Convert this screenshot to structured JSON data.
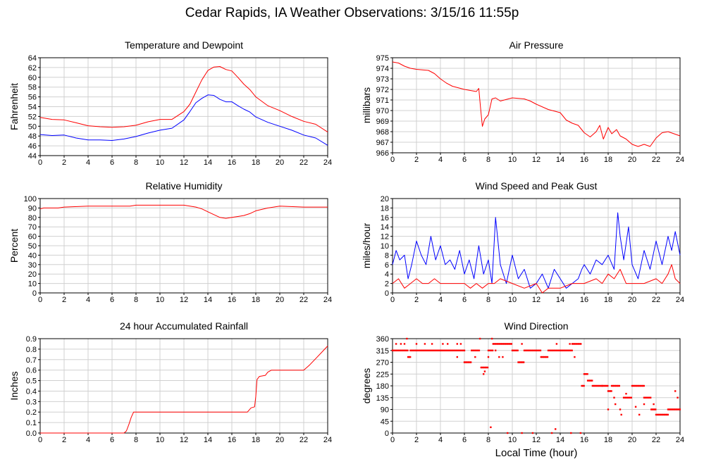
{
  "page": {
    "title": "Cedar Rapids, IA Weather Observations: 3/15/16 11:55p",
    "xlabel": "Local Time (hour)"
  },
  "chart_data": [
    {
      "id": "temp",
      "type": "line",
      "title": "Temperature and Dewpoint",
      "ylabel": "Fahrenheit",
      "xlim": [
        0,
        24
      ],
      "ylim": [
        44,
        64
      ],
      "xticks": [
        0,
        2,
        4,
        6,
        8,
        10,
        12,
        14,
        16,
        18,
        20,
        22,
        24
      ],
      "yticks": [
        44,
        46,
        48,
        50,
        52,
        54,
        56,
        58,
        60,
        62,
        64
      ],
      "grid": true,
      "series": [
        {
          "color": "#ff0000",
          "x": [
            0,
            1,
            2,
            3,
            4,
            5,
            6,
            7,
            8,
            9,
            10,
            11,
            12,
            12.5,
            13,
            13.5,
            14,
            14.5,
            15,
            15.5,
            16,
            16.5,
            17,
            17.5,
            18,
            19,
            20,
            21,
            22,
            23,
            24
          ],
          "y": [
            51.8,
            51.4,
            51.3,
            50.7,
            50.1,
            49.9,
            49.8,
            49.9,
            50.2,
            50.9,
            51.4,
            51.4,
            53.0,
            54.5,
            57.0,
            59.5,
            61.4,
            62.1,
            62.2,
            61.6,
            61.3,
            60.0,
            58.6,
            57.5,
            56.0,
            54.2,
            53.2,
            52.0,
            51.0,
            50.4,
            48.8
          ]
        },
        {
          "color": "#0000ff",
          "x": [
            0,
            1,
            2,
            3,
            4,
            5,
            6,
            7,
            8,
            9,
            10,
            11,
            12,
            12.5,
            13,
            13.5,
            14,
            14.5,
            15,
            15.5,
            16,
            16.5,
            17,
            17.5,
            18,
            19,
            20,
            21,
            22,
            23,
            24
          ],
          "y": [
            48.3,
            48.1,
            48.2,
            47.6,
            47.2,
            47.2,
            47.1,
            47.4,
            47.9,
            48.6,
            49.2,
            49.6,
            51.3,
            53.0,
            54.8,
            55.7,
            56.4,
            56.3,
            55.5,
            55.0,
            55.0,
            54.2,
            53.5,
            52.9,
            51.9,
            50.8,
            50.0,
            49.2,
            48.2,
            47.6,
            46.1
          ]
        }
      ]
    },
    {
      "id": "pres",
      "type": "line",
      "title": "Air Pressure",
      "ylabel": "millibars",
      "xlim": [
        0,
        24
      ],
      "ylim": [
        966,
        975
      ],
      "xticks": [
        0,
        2,
        4,
        6,
        8,
        10,
        12,
        14,
        16,
        18,
        20,
        22,
        24
      ],
      "yticks": [
        966,
        967,
        968,
        969,
        970,
        971,
        972,
        973,
        974,
        975
      ],
      "grid": true,
      "series": [
        {
          "color": "#ff0000",
          "x": [
            0,
            0.5,
            1,
            1.5,
            2,
            3,
            3.5,
            4,
            4.5,
            5,
            6,
            7,
            7.2,
            7.35,
            7.5,
            7.7,
            8,
            8.3,
            8.6,
            9,
            10,
            11,
            11.5,
            12,
            13,
            14,
            14.5,
            15,
            15.5,
            16,
            16.5,
            17,
            17.3,
            17.6,
            18,
            18.3,
            18.7,
            19,
            19.5,
            20,
            20.5,
            21,
            21.5,
            22,
            22.5,
            23,
            23.5,
            24
          ],
          "y": [
            974.6,
            974.5,
            974.2,
            974.0,
            973.9,
            973.8,
            973.5,
            973.0,
            972.6,
            972.3,
            972.0,
            971.8,
            972.1,
            970.2,
            968.5,
            969.2,
            969.6,
            971.1,
            971.2,
            970.9,
            971.2,
            971.1,
            970.9,
            970.6,
            970.1,
            969.8,
            969.1,
            968.8,
            968.6,
            967.9,
            967.5,
            968.0,
            968.6,
            967.3,
            968.4,
            967.8,
            968.2,
            967.6,
            967.3,
            966.8,
            966.6,
            966.8,
            966.6,
            967.4,
            967.9,
            968.0,
            967.8,
            967.6
          ]
        }
      ]
    },
    {
      "id": "rh",
      "type": "line",
      "title": "Relative Humidity",
      "ylabel": "Percent",
      "xlim": [
        0,
        24
      ],
      "ylim": [
        0,
        100
      ],
      "xticks": [
        0,
        2,
        4,
        6,
        8,
        10,
        12,
        14,
        16,
        18,
        20,
        22,
        24
      ],
      "yticks": [
        0,
        10,
        20,
        30,
        40,
        50,
        60,
        70,
        80,
        90,
        100
      ],
      "grid": true,
      "series": [
        {
          "color": "#ff0000",
          "x": [
            0,
            0.3,
            1.5,
            2,
            4,
            6,
            7.5,
            8,
            10,
            12,
            12.5,
            13,
            13.5,
            14,
            14.5,
            15,
            15.5,
            16,
            16.5,
            17,
            17.5,
            18,
            19,
            20,
            22,
            24
          ],
          "y": [
            89,
            90,
            90,
            91,
            92,
            92,
            92,
            93,
            93,
            93,
            92,
            91,
            89,
            86,
            83,
            80,
            79,
            80,
            81,
            82,
            84,
            87,
            90,
            92,
            91,
            91
          ]
        }
      ]
    },
    {
      "id": "wind",
      "type": "line",
      "title": "Wind Speed and Peak Gust",
      "ylabel": "miles/hour",
      "xlim": [
        0,
        24
      ],
      "ylim": [
        0,
        20
      ],
      "xticks": [
        0,
        2,
        4,
        6,
        8,
        10,
        12,
        14,
        16,
        18,
        20,
        22,
        24
      ],
      "yticks": [
        0,
        2,
        4,
        6,
        8,
        10,
        12,
        14,
        16,
        18,
        20
      ],
      "grid": true,
      "series": [
        {
          "color": "#0000ff",
          "x": [
            0,
            0.3,
            0.6,
            1,
            1.3,
            1.6,
            2,
            2.4,
            2.8,
            3.2,
            3.6,
            4,
            4.4,
            4.8,
            5.2,
            5.6,
            6,
            6.4,
            6.8,
            7.2,
            7.6,
            8,
            8.3,
            8.6,
            9,
            9.5,
            10,
            10.5,
            11,
            11.5,
            12,
            12.5,
            13,
            13.5,
            14,
            14.5,
            15,
            15.5,
            15.8,
            16,
            16.5,
            17,
            17.5,
            18,
            18.5,
            18.8,
            19,
            19.3,
            19.7,
            20,
            20.5,
            21,
            21.5,
            22,
            22.5,
            23,
            23.3,
            23.6,
            24
          ],
          "y": [
            6,
            9,
            7,
            8,
            3,
            6,
            11,
            8,
            6,
            12,
            7,
            10,
            6,
            7,
            5,
            9,
            4,
            7,
            3,
            10,
            4,
            7,
            2,
            16,
            6,
            2,
            8,
            3,
            5,
            1,
            2,
            4,
            1,
            5,
            3,
            1,
            2,
            3,
            5,
            6,
            4,
            7,
            6,
            8,
            5,
            17,
            12,
            7,
            14,
            6,
            3,
            9,
            5,
            11,
            6,
            12,
            9,
            13,
            8
          ]
        },
        {
          "color": "#ff0000",
          "x": [
            0,
            0.5,
            1,
            1.5,
            2,
            2.5,
            3,
            3.5,
            4,
            5,
            6,
            6.5,
            7,
            7.5,
            8,
            8.5,
            9,
            10,
            11,
            12,
            12.5,
            13,
            14,
            15,
            16,
            17,
            17.5,
            18,
            18.5,
            19,
            19.5,
            20,
            21,
            22,
            22.5,
            23,
            23.3,
            23.6,
            24
          ],
          "y": [
            2,
            3,
            1,
            2,
            3,
            2,
            2,
            3,
            2,
            2,
            2,
            1,
            2,
            1,
            2,
            2,
            3,
            2,
            1,
            2,
            0,
            1,
            1,
            2,
            2,
            3,
            2,
            4,
            3,
            5,
            2,
            2,
            2,
            3,
            2,
            4,
            6,
            3,
            2
          ]
        }
      ]
    },
    {
      "id": "rain",
      "type": "line",
      "title": "24 hour Accumulated Rainfall",
      "ylabel": "Inches",
      "xlim": [
        0,
        24
      ],
      "ylim": [
        0,
        0.9
      ],
      "xticks": [
        0,
        2,
        4,
        6,
        8,
        10,
        12,
        14,
        16,
        18,
        20,
        22,
        24
      ],
      "yticks": [
        0,
        0.1,
        0.2,
        0.3,
        0.4,
        0.5,
        0.6,
        0.7,
        0.8,
        0.9
      ],
      "ytick_labels": [
        "0.0",
        "0.1",
        "0.2",
        "0.3",
        "0.4",
        "0.5",
        "0.6",
        "0.7",
        "0.8",
        "0.9"
      ],
      "grid": true,
      "series": [
        {
          "color": "#ff0000",
          "x": [
            0,
            7.0,
            7.2,
            7.4,
            7.6,
            7.8,
            17.3,
            17.6,
            17.9,
            18.0,
            18.1,
            18.3,
            18.8,
            19.0,
            19.3,
            20.0,
            22.0,
            22.5,
            23.0,
            23.5,
            24
          ],
          "y": [
            0,
            0,
            0.02,
            0.08,
            0.15,
            0.2,
            0.2,
            0.24,
            0.25,
            0.35,
            0.51,
            0.54,
            0.55,
            0.58,
            0.6,
            0.6,
            0.6,
            0.65,
            0.71,
            0.77,
            0.83
          ]
        }
      ]
    },
    {
      "id": "dir",
      "type": "scatter",
      "title": "Wind Direction",
      "ylabel": "degrees",
      "xlim": [
        0,
        24
      ],
      "ylim": [
        0,
        360
      ],
      "xticks": [
        0,
        2,
        4,
        6,
        8,
        10,
        12,
        14,
        16,
        18,
        20,
        22,
        24
      ],
      "yticks": [
        0,
        45,
        90,
        135,
        180,
        225,
        270,
        315,
        360
      ],
      "grid": true,
      "series": [
        {
          "color": "#ff0000",
          "marker": "square",
          "segments": [
            [
              0,
              1.3,
              315
            ],
            [
              1.3,
              1.5,
              290
            ],
            [
              1.5,
              6.0,
              315
            ],
            [
              6.0,
              6.6,
              270
            ],
            [
              6.6,
              7.3,
              315
            ],
            [
              7.4,
              8.0,
              250
            ],
            [
              8.0,
              8.4,
              315
            ],
            [
              8.4,
              10.0,
              340
            ],
            [
              10.0,
              10.5,
              315
            ],
            [
              10.5,
              11.0,
              270
            ],
            [
              11.0,
              12.4,
              315
            ],
            [
              12.4,
              13.0,
              290
            ],
            [
              13.0,
              15.0,
              315
            ],
            [
              15.0,
              15.8,
              340
            ],
            [
              15.8,
              16.0,
              180
            ],
            [
              16.0,
              16.3,
              225
            ],
            [
              16.3,
              16.7,
              200
            ],
            [
              16.7,
              18.0,
              180
            ],
            [
              18.0,
              18.3,
              160
            ],
            [
              18.3,
              19.0,
              180
            ],
            [
              19.3,
              20.0,
              135
            ],
            [
              20.0,
              21.0,
              180
            ],
            [
              21.0,
              21.6,
              135
            ],
            [
              21.6,
              22.0,
              90
            ],
            [
              22.0,
              23.0,
              70
            ],
            [
              23.0,
              24.0,
              90
            ]
          ],
          "extra_points": [
            [
              0.3,
              340
            ],
            [
              0.7,
              340
            ],
            [
              1.0,
              340
            ],
            [
              1.2,
              360
            ],
            [
              2.0,
              340
            ],
            [
              2.7,
              340
            ],
            [
              3.3,
              340
            ],
            [
              4.2,
              340
            ],
            [
              4.6,
              340
            ],
            [
              5.4,
              340
            ],
            [
              5.7,
              340
            ],
            [
              5.4,
              290
            ],
            [
              6.9,
              290
            ],
            [
              7.3,
              360
            ],
            [
              7.6,
              225
            ],
            [
              7.7,
              235
            ],
            [
              8.0,
              290
            ],
            [
              8.3,
              360
            ],
            [
              8.6,
              315
            ],
            [
              8.9,
              290
            ],
            [
              9.2,
              290
            ],
            [
              10.8,
              340
            ],
            [
              13.7,
              340
            ],
            [
              14.8,
              340
            ],
            [
              15.2,
              290
            ],
            [
              8.2,
              22
            ],
            [
              9.6,
              0
            ],
            [
              10.8,
              0
            ],
            [
              11.7,
              0
            ],
            [
              13.3,
              0
            ],
            [
              13.6,
              15
            ],
            [
              14.9,
              0
            ],
            [
              15.7,
              0
            ],
            [
              18.0,
              90
            ],
            [
              18.5,
              135
            ],
            [
              18.6,
              110
            ],
            [
              19.0,
              90
            ],
            [
              19.1,
              70
            ],
            [
              19.5,
              150
            ],
            [
              20.3,
              100
            ],
            [
              20.6,
              70
            ],
            [
              21.0,
              110
            ],
            [
              21.8,
              110
            ],
            [
              23.6,
              160
            ],
            [
              23.8,
              135
            ],
            [
              17.5,
              180
            ]
          ]
        }
      ]
    }
  ]
}
